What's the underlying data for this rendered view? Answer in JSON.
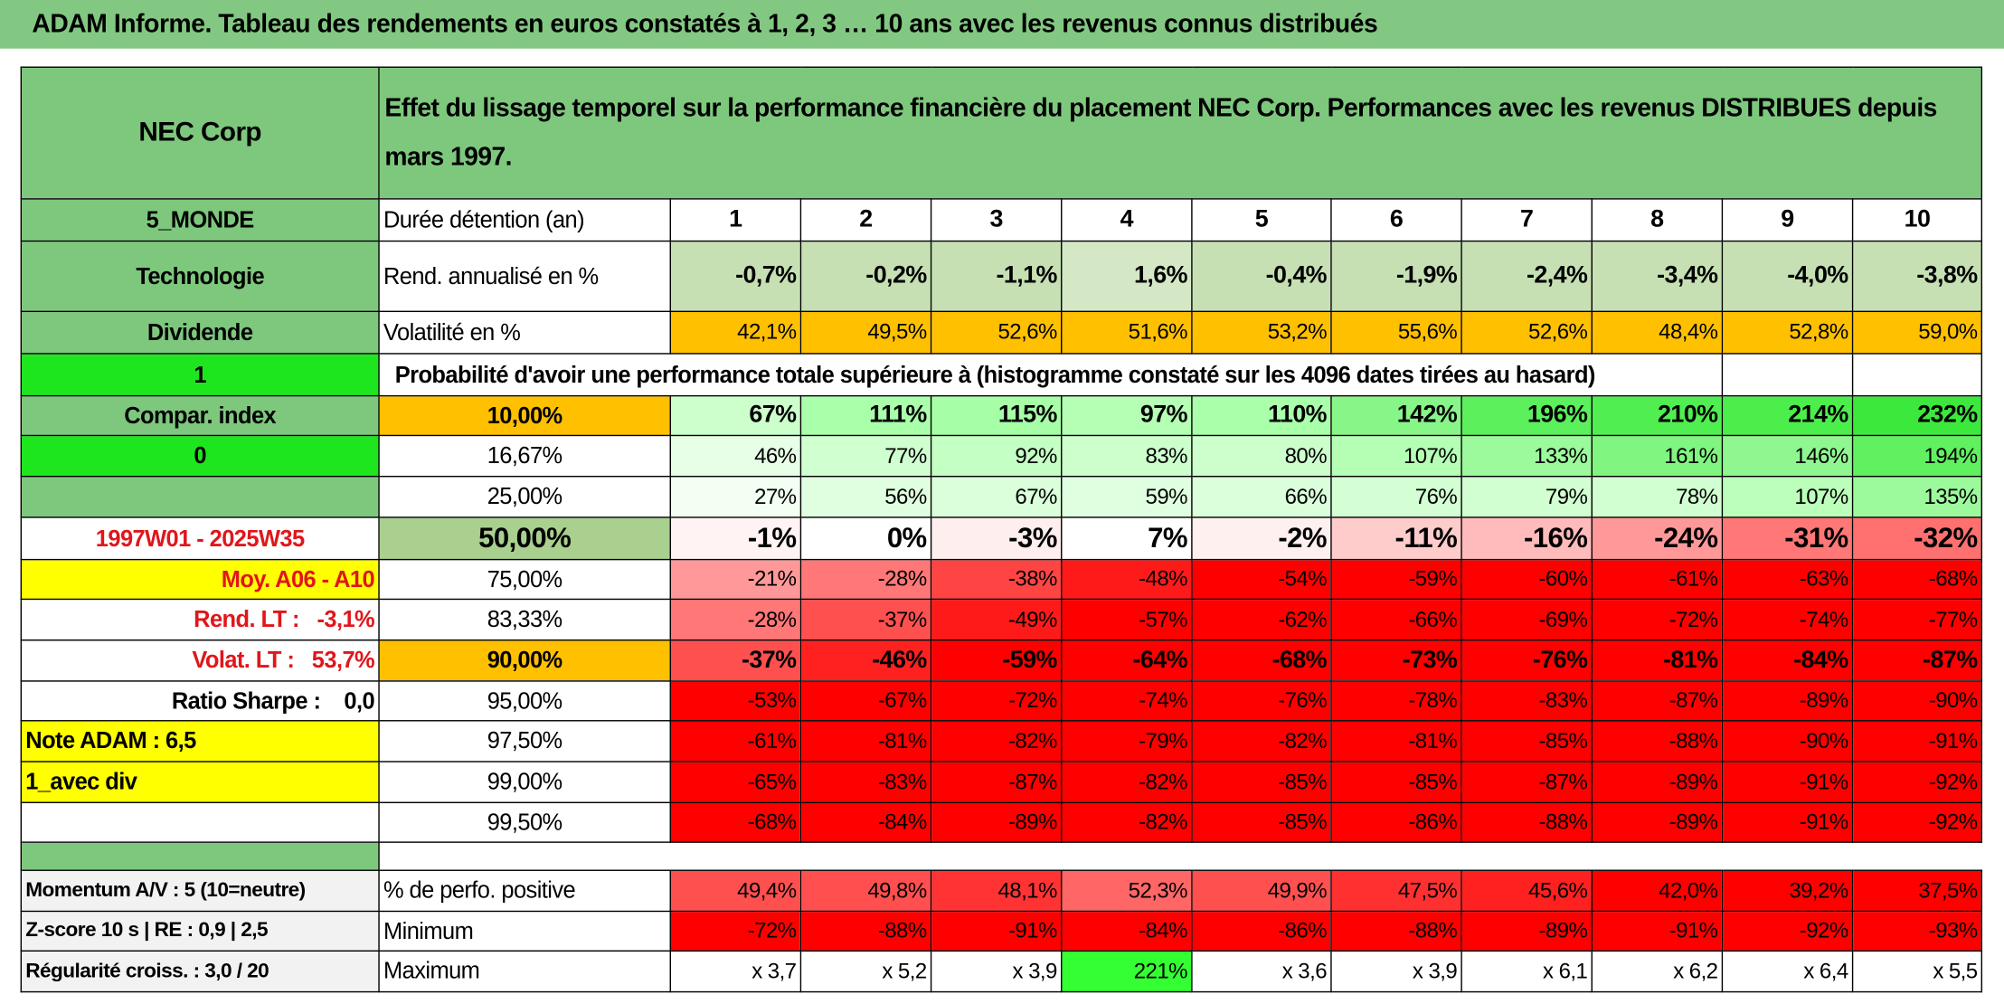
{
  "title": "ADAM Informe. Tableau des rendements en euros constatés à 1, 2, 3 … 10 ans avec les revenus connus distribués",
  "header": {
    "name": "NEC Corp",
    "description": "Effet du lissage temporel sur la performance financière du placement NEC Corp. Performances avec les revenus DISTRIBUES depuis mars 1997."
  },
  "rows": [
    {
      "side": "5_MONDE",
      "label": "Durée détention (an)",
      "values": [
        1,
        2,
        3,
        4,
        5,
        6,
        7,
        8,
        9,
        10
      ]
    },
    {
      "side": "Technologie",
      "label": "Rend. annualisé en %",
      "values": [
        "-0,7%",
        "-0,2%",
        "-1,1%",
        "1,6%",
        "-0,4%",
        "-1,9%",
        "-2,4%",
        "-3,4%",
        "-4,0%",
        "-3,8%"
      ],
      "fills": [
        "#c6e0b4",
        "#c6e0b4",
        "#c6e0b4",
        "#d4e8c6",
        "#c6e0b4",
        "#c6e0b4",
        "#c6e0b4",
        "#c6e0b4",
        "#c6e0b4",
        "#c6e0b4"
      ]
    },
    {
      "side": "Dividende",
      "label": "Volatilité en %",
      "values": [
        "42,1%",
        "49,5%",
        "52,6%",
        "51,6%",
        "53,2%",
        "55,6%",
        "52,6%",
        "48,4%",
        "52,8%",
        "59,0%"
      ],
      "fills": [
        "#ffc000",
        "#ffc000",
        "#ffc000",
        "#ffc000",
        "#ffc000",
        "#ffc000",
        "#ffc000",
        "#ffc000",
        "#ffc000",
        "#ffc000"
      ]
    },
    {
      "side": "1",
      "text": "Probabilité d'avoir une performance totale supérieure à (histogramme constaté sur les 4096 dates tirées au hasard)"
    },
    {
      "side": "Compar. index",
      "label": "10,00%",
      "values": [
        "67%",
        "111%",
        "115%",
        "97%",
        "110%",
        "142%",
        "196%",
        "210%",
        "214%",
        "232%"
      ],
      "fills": [
        "#ccffcc",
        "#aaffaa",
        "#a6ffa6",
        "#b5ffb5",
        "#aaffaa",
        "#88f588",
        "#5cf05c",
        "#50ee50",
        "#4cee4c",
        "#3ce83c"
      ]
    },
    {
      "side": "0",
      "label": "16,67%",
      "values": [
        "46%",
        "77%",
        "92%",
        "83%",
        "80%",
        "107%",
        "133%",
        "161%",
        "146%",
        "194%"
      ],
      "fills": [
        "#e6ffe6",
        "#d0ffd0",
        "#c4ffc4",
        "#ccffcc",
        "#ccffcc",
        "#b5ffb5",
        "#9cfa9c",
        "#80f580",
        "#90f790",
        "#60f060"
      ]
    },
    {
      "label": "25,00%",
      "values": [
        "27%",
        "56%",
        "67%",
        "59%",
        "66%",
        "76%",
        "79%",
        "78%",
        "107%",
        "135%"
      ],
      "fills": [
        "#f2fff2",
        "#e0ffe0",
        "#daffda",
        "#e0ffe0",
        "#daffda",
        "#d4ffd4",
        "#d2ffd2",
        "#d2ffd2",
        "#bbffbb",
        "#9cfa9c"
      ]
    },
    {
      "side": "1997W01 - 2025W35",
      "label": "50,00%",
      "values": [
        "-1%",
        "0%",
        "-3%",
        "7%",
        "-2%",
        "-11%",
        "-16%",
        "-24%",
        "-31%",
        "-32%"
      ],
      "fills": [
        "#fff3f3",
        "#ffffff",
        "#ffeeee",
        "#ffffff",
        "#fff0f0",
        "#ffcccc",
        "#ffbbbb",
        "#ff9999",
        "#ff7777",
        "#ff7070"
      ]
    },
    {
      "side": "Moy. A06 - A10",
      "label": "75,00%",
      "values": [
        "-21%",
        "-28%",
        "-38%",
        "-48%",
        "-54%",
        "-59%",
        "-60%",
        "-61%",
        "-63%",
        "-68%"
      ],
      "fills": [
        "#ff9999",
        "#ff7777",
        "#ff4444",
        "#ff1a1a",
        "#ff0000",
        "#ff0000",
        "#ff0000",
        "#ff0000",
        "#ff0000",
        "#ff0000"
      ]
    },
    {
      "side": "Rend. LT :   -3,1%",
      "label": "83,33%",
      "values": [
        "-28%",
        "-37%",
        "-49%",
        "-57%",
        "-62%",
        "-66%",
        "-69%",
        "-72%",
        "-74%",
        "-77%"
      ],
      "fills": [
        "#ff7777",
        "#ff5050",
        "#ff1a1a",
        "#ff0000",
        "#ff0000",
        "#ff0000",
        "#ff0000",
        "#ff0000",
        "#ff0000",
        "#ff0000"
      ]
    },
    {
      "side": "Volat. LT :   53,7%",
      "label": "90,00%",
      "values": [
        "-37%",
        "-46%",
        "-59%",
        "-64%",
        "-68%",
        "-73%",
        "-76%",
        "-81%",
        "-84%",
        "-87%"
      ],
      "fills": [
        "#ff5050",
        "#ff2020",
        "#ff0000",
        "#ff0000",
        "#ff0000",
        "#ff0000",
        "#ff0000",
        "#ff0000",
        "#ff0000",
        "#ff0000"
      ]
    },
    {
      "side": "Ratio Sharpe :    0,0",
      "label": "95,00%",
      "values": [
        "-53%",
        "-67%",
        "-72%",
        "-74%",
        "-76%",
        "-78%",
        "-83%",
        "-87%",
        "-89%",
        "-90%"
      ],
      "fills": [
        "#ff0000",
        "#ff0000",
        "#ff0000",
        "#ff0000",
        "#ff0000",
        "#ff0000",
        "#ff0000",
        "#ff0000",
        "#ff0000",
        "#ff0000"
      ]
    },
    {
      "side": "Note ADAM : 6,5",
      "label": "97,50%",
      "values": [
        "-61%",
        "-81%",
        "-82%",
        "-79%",
        "-82%",
        "-81%",
        "-85%",
        "-88%",
        "-90%",
        "-91%"
      ],
      "fills": [
        "#ff0000",
        "#ff0000",
        "#ff0000",
        "#ff0000",
        "#ff0000",
        "#ff0000",
        "#ff0000",
        "#ff0000",
        "#ff0000",
        "#ff0000"
      ]
    },
    {
      "side": "1_avec div",
      "label": "99,00%",
      "values": [
        "-65%",
        "-83%",
        "-87%",
        "-82%",
        "-85%",
        "-85%",
        "-87%",
        "-89%",
        "-91%",
        "-92%"
      ],
      "fills": [
        "#ff0000",
        "#ff0000",
        "#ff0000",
        "#ff0000",
        "#ff0000",
        "#ff0000",
        "#ff0000",
        "#ff0000",
        "#ff0000",
        "#ff0000"
      ]
    },
    {
      "label": "99,50%",
      "values": [
        "-68%",
        "-84%",
        "-89%",
        "-82%",
        "-85%",
        "-86%",
        "-88%",
        "-89%",
        "-91%",
        "-92%"
      ],
      "fills": [
        "#ff0000",
        "#ff0000",
        "#ff0000",
        "#ff0000",
        "#ff0000",
        "#ff0000",
        "#ff0000",
        "#ff0000",
        "#ff0000",
        "#ff0000"
      ]
    },
    {
      "side": "Momentum A/V : 5 (10=neutre)",
      "label": "% de perfo. positive",
      "values": [
        "49,4%",
        "49,8%",
        "48,1%",
        "52,3%",
        "49,9%",
        "47,5%",
        "45,6%",
        "42,0%",
        "39,2%",
        "37,5%"
      ],
      "fills": [
        "#ff5050",
        "#ff4f4f",
        "#ff3333",
        "#ff6666",
        "#ff5050",
        "#ff3030",
        "#ff2020",
        "#ff0000",
        "#ff0000",
        "#ff0000"
      ]
    },
    {
      "side": "Z-score 10 s | RE : 0,9 | 2,5",
      "label": "Minimum",
      "values": [
        "-72%",
        "-88%",
        "-91%",
        "-84%",
        "-86%",
        "-88%",
        "-89%",
        "-91%",
        "-92%",
        "-93%"
      ],
      "fills": [
        "#ff0000",
        "#ff0000",
        "#ff0000",
        "#ff0000",
        "#ff0000",
        "#ff0000",
        "#ff0000",
        "#ff0000",
        "#ff0000",
        "#ff0000"
      ]
    },
    {
      "side": "Régularité croiss. : 3,0 / 20",
      "label": "Maximum",
      "values": [
        "x 3,7",
        "x 5,2",
        "x 3,9",
        "221%",
        "x 3,6",
        "x 3,9",
        "x 6,1",
        "x 6,2",
        "x 6,4",
        "x 5,5"
      ],
      "fills": [
        "#ffffff",
        "#ffffff",
        "#ffffff",
        "#33ff33",
        "#ffffff",
        "#ffffff",
        "#ffffff",
        "#ffffff",
        "#ffffff",
        "#ffffff"
      ]
    }
  ]
}
